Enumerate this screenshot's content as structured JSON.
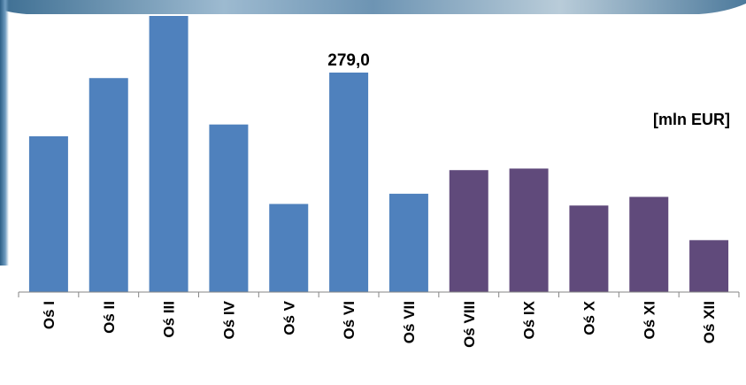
{
  "chart_data": {
    "type": "bar",
    "unit_label": "[mln EUR]",
    "categories": [
      "Oś I",
      "Oś II",
      "Oś III",
      "Oś IV",
      "Oś V",
      "Oś VI",
      "Oś VII",
      "Oś VIII",
      "Oś IX",
      "Oś X",
      "Oś XI",
      "Oś XII"
    ],
    "values": [
      198,
      272,
      351,
      213,
      112,
      279,
      125,
      155,
      157,
      110,
      121,
      66
    ],
    "colors": [
      "#4f81bd",
      "#4f81bd",
      "#4f81bd",
      "#4f81bd",
      "#4f81bd",
      "#4f81bd",
      "#4f81bd",
      "#604a7b",
      "#604a7b",
      "#604a7b",
      "#604a7b",
      "#604a7b"
    ],
    "data_labels": [
      {
        "index": 5,
        "text": "279,0"
      }
    ],
    "ylim": [
      0,
      360
    ],
    "grid": false,
    "legend": "none"
  }
}
